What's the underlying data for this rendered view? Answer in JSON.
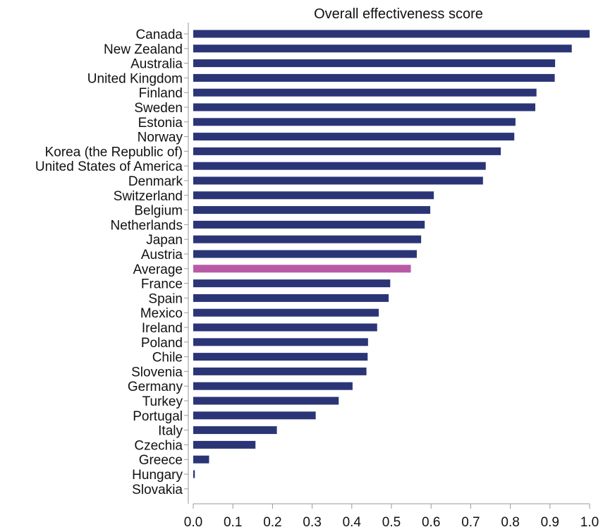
{
  "chart_data": {
    "type": "bar",
    "orientation": "horizontal",
    "title": "Overall effectiveness score",
    "xlabel": "",
    "ylabel": "",
    "xlim": [
      0,
      1.0
    ],
    "x_ticks": [
      "0.0",
      "0.1",
      "0.2",
      "0.3",
      "0.4",
      "0.5",
      "0.6",
      "0.7",
      "0.8",
      "0.9",
      "1.0"
    ],
    "grid": false,
    "colors": {
      "bar": "#2b3576",
      "highlight": "#b85aa6"
    },
    "highlight_category": "Average",
    "categories": [
      "Canada",
      "New Zealand",
      "Australia",
      "United Kingdom",
      "Finland",
      "Sweden",
      "Estonia",
      "Norway",
      "Korea (the Republic of)",
      "United States of America",
      "Denmark",
      "Switzerland",
      "Belgium",
      "Netherlands",
      "Japan",
      "Austria",
      "Average",
      "France",
      "Spain",
      "Mexico",
      "Ireland",
      "Poland",
      "Chile",
      "Slovenia",
      "Germany",
      "Turkey",
      "Portugal",
      "Italy",
      "Czechia",
      "Greece",
      "Hungary",
      "Slovakia"
    ],
    "values": [
      1.0,
      0.955,
      0.913,
      0.912,
      0.866,
      0.863,
      0.813,
      0.81,
      0.776,
      0.738,
      0.731,
      0.607,
      0.598,
      0.584,
      0.575,
      0.564,
      0.549,
      0.497,
      0.493,
      0.468,
      0.464,
      0.441,
      0.44,
      0.437,
      0.402,
      0.367,
      0.309,
      0.211,
      0.157,
      0.04,
      0.004,
      0.0
    ]
  }
}
